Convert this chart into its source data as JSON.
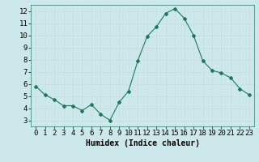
{
  "x": [
    0,
    1,
    2,
    3,
    4,
    5,
    6,
    7,
    8,
    9,
    10,
    11,
    12,
    13,
    14,
    15,
    16,
    17,
    18,
    19,
    20,
    21,
    22,
    23
  ],
  "y": [
    5.8,
    5.1,
    4.7,
    4.2,
    4.2,
    3.8,
    4.3,
    3.5,
    3.0,
    4.5,
    5.4,
    7.9,
    9.9,
    10.7,
    11.8,
    12.2,
    11.4,
    10.0,
    7.9,
    7.1,
    6.9,
    6.5,
    5.6,
    5.1
  ],
  "line_color": "#1a7a5e",
  "marker": "D",
  "marker_size": 2,
  "grid_color": "#c8dfe0",
  "xlabel": "Humidex (Indice chaleur)",
  "ylim": [
    2.5,
    12.5
  ],
  "xlim": [
    -0.5,
    23.5
  ],
  "yticks": [
    3,
    4,
    5,
    6,
    7,
    8,
    9,
    10,
    11,
    12
  ],
  "xticks": [
    0,
    1,
    2,
    3,
    4,
    5,
    6,
    7,
    8,
    9,
    10,
    11,
    12,
    13,
    14,
    15,
    16,
    17,
    18,
    19,
    20,
    21,
    22,
    23
  ],
  "xlabel_fontsize": 7,
  "tick_fontsize": 6.5,
  "axis_bg": "#cce8ea",
  "fig_bg": "#cce8ea"
}
